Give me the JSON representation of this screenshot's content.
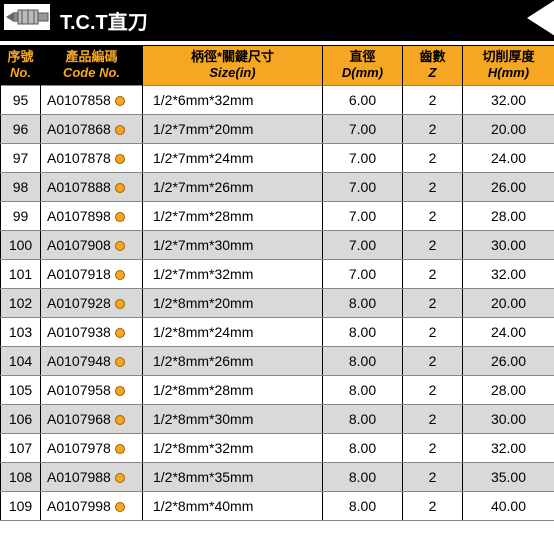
{
  "title": "T.C.T直刀",
  "columns": [
    {
      "cn": "序號",
      "en": "No.",
      "key": "no",
      "light": false
    },
    {
      "cn": "產品編碼",
      "en": "Code No.",
      "key": "code",
      "light": false
    },
    {
      "cn": "柄徑*關鍵尺寸",
      "en": "Size(in)",
      "key": "size",
      "light": true
    },
    {
      "cn": "直徑",
      "en": "D(mm)",
      "key": "d",
      "light": true
    },
    {
      "cn": "齒數",
      "en": "Z",
      "key": "z",
      "light": true
    },
    {
      "cn": "切削厚度",
      "en": "H(mm)",
      "key": "h",
      "light": true
    }
  ],
  "rows": [
    {
      "no": "95",
      "code": "A0107858",
      "size": "1/2*6mm*32mm",
      "d": "6.00",
      "z": "2",
      "h": "32.00"
    },
    {
      "no": "96",
      "code": "A0107868",
      "size": "1/2*7mm*20mm",
      "d": "7.00",
      "z": "2",
      "h": "20.00"
    },
    {
      "no": "97",
      "code": "A0107878",
      "size": "1/2*7mm*24mm",
      "d": "7.00",
      "z": "2",
      "h": "24.00"
    },
    {
      "no": "98",
      "code": "A0107888",
      "size": "1/2*7mm*26mm",
      "d": "7.00",
      "z": "2",
      "h": "26.00"
    },
    {
      "no": "99",
      "code": "A0107898",
      "size": "1/2*7mm*28mm",
      "d": "7.00",
      "z": "2",
      "h": "28.00"
    },
    {
      "no": "100",
      "code": "A0107908",
      "size": "1/2*7mm*30mm",
      "d": "7.00",
      "z": "2",
      "h": "30.00"
    },
    {
      "no": "101",
      "code": "A0107918",
      "size": "1/2*7mm*32mm",
      "d": "7.00",
      "z": "2",
      "h": "32.00"
    },
    {
      "no": "102",
      "code": "A0107928",
      "size": "1/2*8mm*20mm",
      "d": "8.00",
      "z": "2",
      "h": "20.00"
    },
    {
      "no": "103",
      "code": "A0107938",
      "size": "1/2*8mm*24mm",
      "d": "8.00",
      "z": "2",
      "h": "24.00"
    },
    {
      "no": "104",
      "code": "A0107948",
      "size": "1/2*8mm*26mm",
      "d": "8.00",
      "z": "2",
      "h": "26.00"
    },
    {
      "no": "105",
      "code": "A0107958",
      "size": "1/2*8mm*28mm",
      "d": "8.00",
      "z": "2",
      "h": "28.00"
    },
    {
      "no": "106",
      "code": "A0107968",
      "size": "1/2*8mm*30mm",
      "d": "8.00",
      "z": "2",
      "h": "30.00"
    },
    {
      "no": "107",
      "code": "A0107978",
      "size": "1/2*8mm*32mm",
      "d": "8.00",
      "z": "2",
      "h": "32.00"
    },
    {
      "no": "108",
      "code": "A0107988",
      "size": "1/2*8mm*35mm",
      "d": "8.00",
      "z": "2",
      "h": "35.00"
    },
    {
      "no": "109",
      "code": "A0107998",
      "size": "1/2*8mm*40mm",
      "d": "8.00",
      "z": "2",
      "h": "40.00"
    }
  ],
  "styling": {
    "accent": "#f5a623",
    "header_bg": "#000000",
    "row_alt_bg": "#d9d9d9",
    "row_bg": "#ffffff",
    "border": "#000000"
  }
}
